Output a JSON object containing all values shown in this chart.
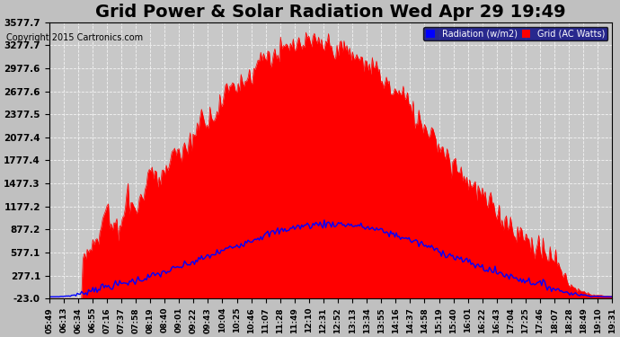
{
  "title": "Grid Power & Solar Radiation Wed Apr 29 19:49",
  "copyright": "Copyright 2015 Cartronics.com",
  "legend_labels": [
    "Radiation (w/m2)",
    "Grid (AC Watts)"
  ],
  "legend_colors": [
    "#0000ff",
    "#ff0000"
  ],
  "yticks": [
    -23.0,
    277.1,
    577.1,
    877.2,
    1177.2,
    1477.3,
    1777.4,
    2077.4,
    2377.5,
    2677.6,
    2977.6,
    3277.7,
    3577.7
  ],
  "ylim": [
    -23.0,
    3577.7
  ],
  "background_color": "#c0c0c0",
  "plot_bg_color": "#c8c8c8",
  "grid_color": "#ffffff",
  "title_fontsize": 14,
  "x_label_fontsize": 6.5,
  "y_label_fontsize": 7.5,
  "xtick_labels": [
    "05:49",
    "06:13",
    "06:34",
    "06:55",
    "07:16",
    "07:37",
    "07:58",
    "08:19",
    "08:40",
    "09:01",
    "09:22",
    "09:43",
    "10:04",
    "10:25",
    "10:46",
    "11:07",
    "11:28",
    "11:49",
    "12:10",
    "12:31",
    "12:52",
    "13:13",
    "13:34",
    "13:55",
    "14:16",
    "14:37",
    "14:58",
    "15:19",
    "15:40",
    "16:01",
    "16:22",
    "16:43",
    "17:04",
    "17:25",
    "17:46",
    "18:07",
    "18:28",
    "18:49",
    "19:10",
    "19:31"
  ]
}
